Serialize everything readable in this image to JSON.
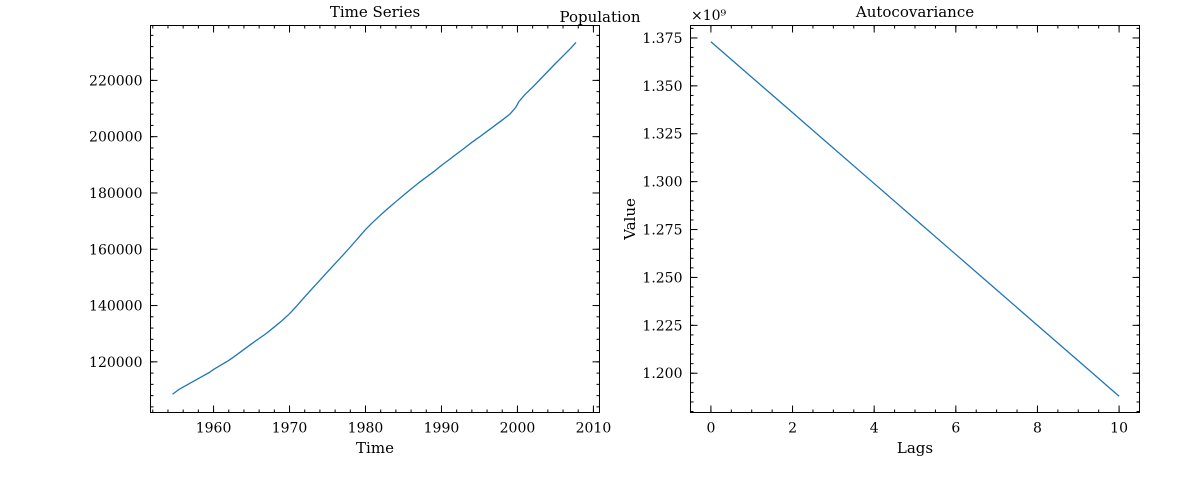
{
  "figure": {
    "suptitle": "Population"
  },
  "chart_data": [
    {
      "type": "line",
      "title": "Time Series",
      "xlabel": "Time",
      "ylabel": "",
      "xlim": [
        1951.7,
        2010.8
      ],
      "ylim": [
        102000,
        239500
      ],
      "xticks": [
        1960,
        1970,
        1980,
        1990,
        2000,
        2010
      ],
      "yticks": [
        120000,
        140000,
        160000,
        180000,
        200000,
        220000
      ],
      "x_minor_step": 2,
      "y_minor_step": 4000,
      "ytick_labels": [
        "120000",
        "140000",
        "160000",
        "180000",
        "200000",
        "220000"
      ],
      "grid": false,
      "color": "#1f77b4",
      "series": [
        {
          "x": [
            1954.6,
            1955.5,
            1956.5,
            1957.5,
            1958.5,
            1959.5,
            1960.0,
            1961.0,
            1962.0,
            1963.0,
            1964.0,
            1965.0,
            1966.0,
            1967.0,
            1968.0,
            1969.0,
            1970.0,
            1971.0,
            1972.0,
            1973.0,
            1974.0,
            1975.0,
            1976.0,
            1977.0,
            1978.0,
            1979.0,
            1980.0,
            1981.0,
            1982.0,
            1983.0,
            1984.0,
            1985.0,
            1986.0,
            1987.0,
            1988.0,
            1989.0,
            1990.0,
            1991.0,
            1992.0,
            1993.0,
            1994.0,
            1995.0,
            1996.0,
            1997.0,
            1998.0,
            1999.0,
            1999.8,
            2000.2,
            2001.0,
            2002.0,
            2003.0,
            2004.0,
            2005.0,
            2006.0,
            2007.0,
            2007.7
          ],
          "y": [
            108500,
            110300,
            111800,
            113300,
            114800,
            116300,
            117300,
            118900,
            120500,
            122400,
            124400,
            126400,
            128300,
            130200,
            132400,
            134600,
            137100,
            140000,
            143100,
            146100,
            149000,
            152000,
            154900,
            157800,
            160800,
            163900,
            167000,
            169700,
            172200,
            174600,
            176900,
            179200,
            181400,
            183600,
            185600,
            187600,
            189800,
            191800,
            193900,
            195900,
            198000,
            199900,
            201900,
            203900,
            205900,
            208000,
            210500,
            212500,
            215000,
            217600,
            220400,
            223200,
            226000,
            228700,
            231400,
            233500
          ]
        }
      ]
    },
    {
      "type": "line",
      "title": "Autocovariance",
      "xlabel": "Lags",
      "ylabel": "Value",
      "offset_text": "×10⁹",
      "xlim": [
        -0.5,
        10.5
      ],
      "ylim": [
        1.1795,
        1.3815
      ],
      "xticks": [
        0,
        2,
        4,
        6,
        8,
        10
      ],
      "yticks": [
        1.2,
        1.225,
        1.25,
        1.275,
        1.3,
        1.325,
        1.35,
        1.375
      ],
      "x_minor_step": 0.5,
      "y_minor_step": 0.005,
      "ytick_labels": [
        "1.200",
        "1.225",
        "1.250",
        "1.275",
        "1.300",
        "1.325",
        "1.350",
        "1.375"
      ],
      "grid": false,
      "color": "#1f77b4",
      "series": [
        {
          "x": [
            0,
            1,
            2,
            3,
            4,
            5,
            6,
            7,
            8,
            9,
            10
          ],
          "y": [
            1.373,
            1.3545,
            1.336,
            1.3175,
            1.299,
            1.2805,
            1.262,
            1.2435,
            1.225,
            1.2065,
            1.188
          ]
        }
      ]
    }
  ]
}
